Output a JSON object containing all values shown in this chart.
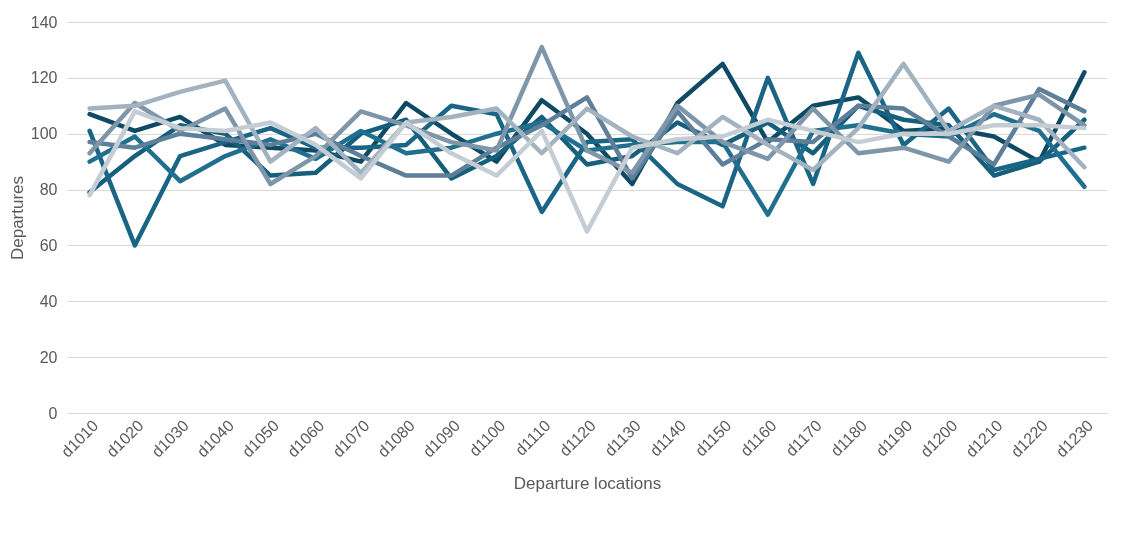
{
  "chart_data": {
    "type": "line",
    "xlabel": "Departure locations",
    "ylabel": "Departures",
    "categories": [
      "d1010",
      "d1020",
      "d1030",
      "d1040",
      "d1050",
      "d1060",
      "d1070",
      "d1080",
      "d1090",
      "d1100",
      "d1110",
      "d1120",
      "d1130",
      "d1140",
      "d1150",
      "d1160",
      "d1170",
      "d1180",
      "d1190",
      "d1200",
      "d1210",
      "d1220",
      "d1230"
    ],
    "ylim": [
      0,
      140
    ],
    "yticks": [
      0,
      20,
      40,
      60,
      80,
      100,
      120,
      140
    ],
    "grid": "y",
    "legend": false,
    "marker": "none",
    "line_style": "solid",
    "series": [
      {
        "color": "#0e4a63",
        "values": [
          107,
          101,
          106,
          96,
          95,
          94,
          90,
          111,
          100,
          90,
          112,
          100,
          82,
          111,
          125,
          97,
          110,
          113,
          101,
          102,
          99,
          90,
          122
        ]
      },
      {
        "color": "#155e7c",
        "values": [
          79,
          92,
          103,
          100,
          85,
          86,
          100,
          105,
          84,
          92,
          106,
          89,
          92,
          104,
          96,
          104,
          93,
          110,
          105,
          103,
          85,
          90,
          105
        ]
      },
      {
        "color": "#1a6585",
        "values": [
          101,
          60,
          92,
          97,
          102,
          95,
          95,
          96,
          110,
          107,
          72,
          97,
          98,
          82,
          74,
          120,
          82,
          129,
          96,
          109,
          87,
          91,
          95
        ]
      },
      {
        "color": "#216f8e",
        "values": [
          90,
          99,
          83,
          92,
          98,
          91,
          101,
          93,
          95,
          100,
          104,
          94,
          96,
          97,
          97,
          71,
          101,
          103,
          100,
          99,
          107,
          101,
          81
        ]
      },
      {
        "color": "#5d7f99",
        "values": [
          97,
          95,
          100,
          98,
          96,
          100,
          92,
          85,
          85,
          95,
          103,
          113,
          84,
          108,
          89,
          98,
          97,
          110,
          109,
          99,
          89,
          116,
          108
        ]
      },
      {
        "color": "#7e96aa",
        "values": [
          93,
          111,
          101,
          109,
          82,
          92,
          108,
          103,
          97,
          94,
          131,
          94,
          86,
          110,
          97,
          91,
          109,
          93,
          95,
          90,
          110,
          114,
          103
        ]
      },
      {
        "color": "#a3b2bf",
        "values": [
          109,
          110,
          115,
          119,
          90,
          102,
          86,
          104,
          106,
          109,
          93,
          109,
          99,
          93,
          106,
          96,
          87,
          102,
          125,
          101,
          110,
          105,
          88
        ]
      },
      {
        "color": "#c5cdd4",
        "values": [
          78,
          108,
          102,
          101,
          104,
          96,
          84,
          104,
          93,
          85,
          101,
          65,
          95,
          98,
          99,
          105,
          101,
          97,
          100,
          100,
          103,
          103,
          102
        ]
      }
    ]
  }
}
